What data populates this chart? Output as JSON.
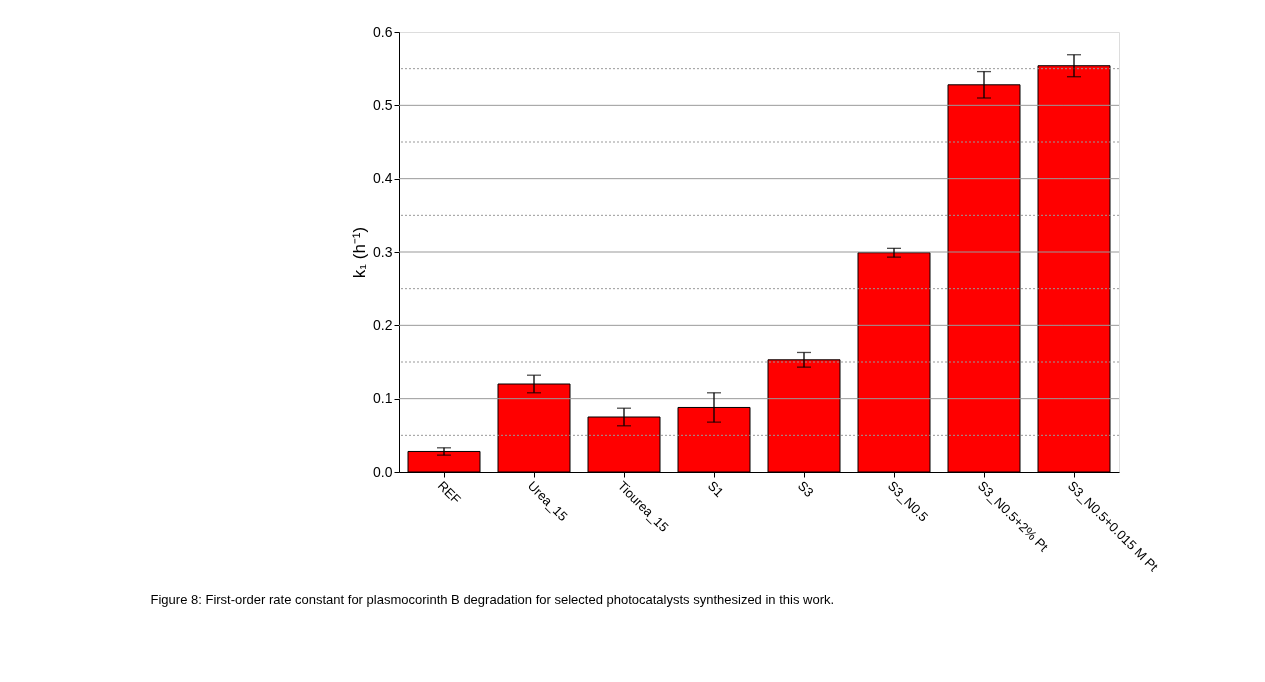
{
  "chart_data": {
    "type": "bar",
    "ylabel": "k₁ (h⁻¹)",
    "categories": [
      "REF",
      "Urea_15",
      "Tiourea_15",
      "S1",
      "S3",
      "S3_N0.5",
      "S3_N0.5+2% Pt",
      "S3_N0.5+0.015 M Pt"
    ],
    "values": [
      0.028,
      0.12,
      0.075,
      0.088,
      0.153,
      0.299,
      0.528,
      0.554
    ],
    "errors": [
      0.005,
      0.012,
      0.012,
      0.02,
      0.01,
      0.006,
      0.018,
      0.015
    ],
    "color": "#ff0000",
    "ylim": [
      0,
      0.6
    ],
    "yticks": [
      {
        "value": 0,
        "label": "0.0"
      },
      {
        "value": 0.05,
        "label": null
      },
      0.1,
      {
        "value": 0.15,
        "label": null
      },
      0.2,
      {
        "value": 0.25,
        "label": null
      },
      0.3,
      {
        "value": 0.35,
        "label": null
      },
      0.4,
      {
        "value": 0.45,
        "label": null
      },
      0.5,
      {
        "value": 0.55,
        "label": null
      },
      0.6
    ],
    "grid": "y",
    "annotations": [
      "Figure 8: First-order rate constant for plasmocorinth B degradation for selected photocatalysts synthesized in this work."
    ]
  }
}
